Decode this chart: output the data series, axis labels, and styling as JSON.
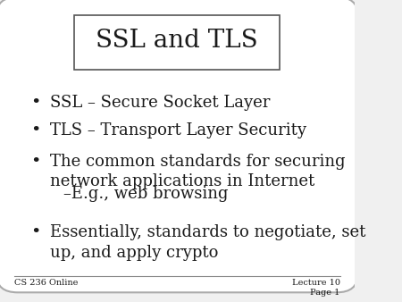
{
  "title": "SSL and TLS",
  "background_color": "#f0f0f0",
  "slide_bg": "#ffffff",
  "bullet_points": [
    {
      "text": "SSL – Secure Socket Layer",
      "indent": 0,
      "bullet": true
    },
    {
      "text": "TLS – Transport Layer Security",
      "indent": 0,
      "bullet": true
    },
    {
      "text": "The common standards for securing\nnetwork applications in Internet",
      "indent": 0,
      "bullet": true
    },
    {
      "text": "–E.g., web browsing",
      "indent": 1,
      "bullet": false
    },
    {
      "text": "Essentially, standards to negotiate, set\nup, and apply crypto",
      "indent": 0,
      "bullet": true
    }
  ],
  "footer_left": "CS 236 Online",
  "footer_right": "Lecture 10\nPage 1",
  "title_fontsize": 20,
  "body_fontsize": 13,
  "footer_fontsize": 7,
  "text_color": "#1a1a1a"
}
